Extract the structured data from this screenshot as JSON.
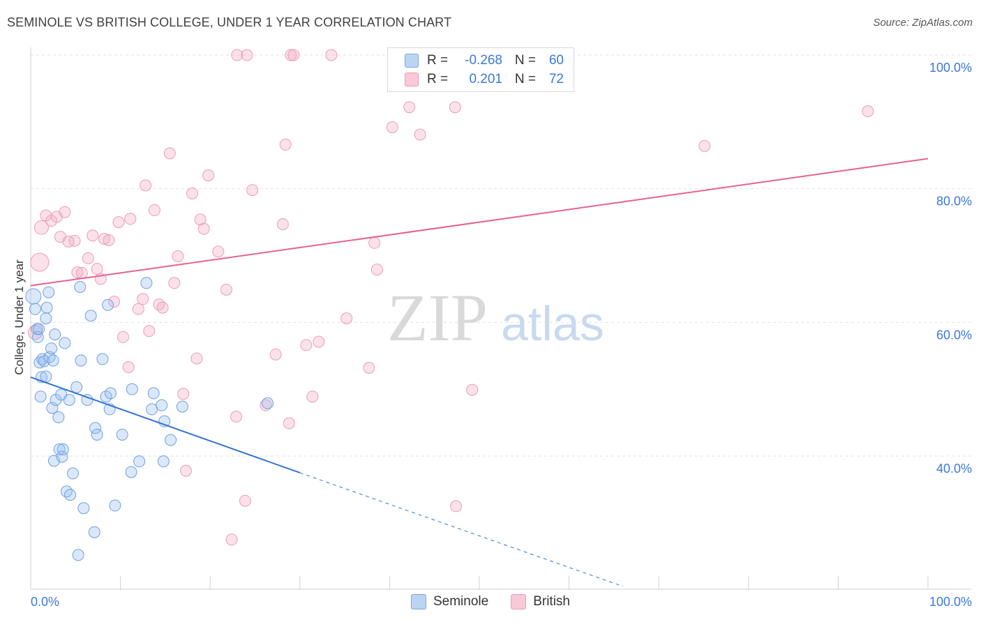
{
  "header": {
    "title": "SEMINOLE VS BRITISH COLLEGE, UNDER 1 YEAR CORRELATION CHART",
    "source": "Source: ZipAtlas.com"
  },
  "watermark": {
    "zip": "ZIP",
    "atlas": "atlas"
  },
  "legend": {
    "rows": [
      {
        "r_label": "R =",
        "r_value": "-0.268",
        "n_label": "N =",
        "n_value": "60"
      },
      {
        "r_label": "R =",
        "r_value": "0.201",
        "n_label": "N =",
        "n_value": "72"
      }
    ]
  },
  "chart_data": {
    "type": "scatter",
    "title": "SEMINOLE VS BRITISH COLLEGE, UNDER 1 YEAR CORRELATION CHART",
    "xlabel": "",
    "ylabel": "College, Under 1 year",
    "xlim": [
      0,
      100
    ],
    "ylim": [
      20,
      102
    ],
    "x_tick_labels": [
      "0.0%",
      "100.0%"
    ],
    "y_ticks": [
      40,
      60,
      80,
      100
    ],
    "y_tick_labels": [
      "40.0%",
      "60.0%",
      "80.0%",
      "100.0%"
    ],
    "grid": true,
    "legend_position": "bottom-center",
    "colors": {
      "seminole": "#6fa0e0",
      "british": "#f0a0bb",
      "seminole_line": "#3372d0",
      "british_line": "#e4628f"
    },
    "series": [
      {
        "name": "Seminole",
        "r": -0.268,
        "n": 60,
        "trend": {
          "x0": 0,
          "y0": 51.8,
          "x1": 30,
          "y1": 37.5,
          "dashed_to_x": 66,
          "dashed_to_y": 20.5
        },
        "points": [
          [
            0.3,
            63.9
          ],
          [
            0.5,
            62.0
          ],
          [
            0.7,
            59.0
          ],
          [
            0.8,
            57.8
          ],
          [
            1.0,
            54.0
          ],
          [
            1.1,
            48.9
          ],
          [
            1.2,
            51.8
          ],
          [
            1.3,
            54.5
          ],
          [
            1.5,
            54.2
          ],
          [
            1.7,
            51.9
          ],
          [
            1.8,
            62.2
          ],
          [
            1.7,
            60.6
          ],
          [
            2.0,
            64.5
          ],
          [
            2.1,
            54.8
          ],
          [
            2.3,
            56.1
          ],
          [
            2.4,
            47.2
          ],
          [
            2.5,
            54.3
          ],
          [
            2.6,
            39.3
          ],
          [
            2.7,
            58.2
          ],
          [
            2.8,
            48.4
          ],
          [
            3.1,
            45.8
          ],
          [
            3.2,
            41.0
          ],
          [
            3.4,
            49.2
          ],
          [
            3.5,
            39.9
          ],
          [
            3.6,
            41.0
          ],
          [
            3.8,
            56.9
          ],
          [
            4.0,
            34.7
          ],
          [
            4.3,
            48.4
          ],
          [
            4.4,
            34.2
          ],
          [
            4.7,
            37.4
          ],
          [
            5.1,
            50.3
          ],
          [
            5.3,
            25.2
          ],
          [
            5.5,
            65.3
          ],
          [
            5.6,
            54.3
          ],
          [
            5.9,
            32.2
          ],
          [
            6.3,
            48.4
          ],
          [
            6.7,
            61.0
          ],
          [
            7.1,
            28.6
          ],
          [
            7.2,
            44.2
          ],
          [
            7.4,
            43.2
          ],
          [
            8.0,
            54.5
          ],
          [
            8.4,
            48.9
          ],
          [
            8.6,
            62.6
          ],
          [
            8.8,
            47.0
          ],
          [
            8.9,
            49.4
          ],
          [
            9.4,
            32.6
          ],
          [
            10.2,
            43.2
          ],
          [
            11.2,
            37.6
          ],
          [
            11.3,
            50.0
          ],
          [
            12.1,
            39.2
          ],
          [
            12.9,
            65.9
          ],
          [
            13.5,
            47.0
          ],
          [
            13.7,
            49.4
          ],
          [
            14.6,
            47.6
          ],
          [
            14.8,
            39.2
          ],
          [
            14.9,
            45.2
          ],
          [
            15.6,
            42.4
          ],
          [
            16.9,
            47.4
          ],
          [
            26.4,
            47.9
          ],
          [
            0.9,
            59.0
          ]
        ]
      },
      {
        "name": "British",
        "r": 0.201,
        "n": 72,
        "trend": {
          "x0": 0,
          "y0": 65.5,
          "x1": 100,
          "y1": 84.5
        },
        "points": [
          [
            0.5,
            58.5
          ],
          [
            1.0,
            69.0
          ],
          [
            1.2,
            74.2
          ],
          [
            1.7,
            76.0
          ],
          [
            2.3,
            75.2
          ],
          [
            2.9,
            75.8
          ],
          [
            3.3,
            72.8
          ],
          [
            3.8,
            76.5
          ],
          [
            4.2,
            72.1
          ],
          [
            4.9,
            72.2
          ],
          [
            5.2,
            67.5
          ],
          [
            5.7,
            67.4
          ],
          [
            6.4,
            69.6
          ],
          [
            6.9,
            73.0
          ],
          [
            7.4,
            68.0
          ],
          [
            7.8,
            66.5
          ],
          [
            8.2,
            72.5
          ],
          [
            8.7,
            72.3
          ],
          [
            9.3,
            63.1
          ],
          [
            9.8,
            75.0
          ],
          [
            10.3,
            57.8
          ],
          [
            10.9,
            53.3
          ],
          [
            11.1,
            75.5
          ],
          [
            12.0,
            62.0
          ],
          [
            12.5,
            63.5
          ],
          [
            12.8,
            80.5
          ],
          [
            13.2,
            58.7
          ],
          [
            13.8,
            76.8
          ],
          [
            14.3,
            62.7
          ],
          [
            14.7,
            62.2
          ],
          [
            15.5,
            85.3
          ],
          [
            16.0,
            65.9
          ],
          [
            16.4,
            69.9
          ],
          [
            17.0,
            49.3
          ],
          [
            17.3,
            37.8
          ],
          [
            18.0,
            79.3
          ],
          [
            18.5,
            54.6
          ],
          [
            18.9,
            75.4
          ],
          [
            19.3,
            74.0
          ],
          [
            19.8,
            82.0
          ],
          [
            20.9,
            70.6
          ],
          [
            21.8,
            64.9
          ],
          [
            22.4,
            27.5
          ],
          [
            22.9,
            45.9
          ],
          [
            23.0,
            100.0
          ],
          [
            23.9,
            33.3
          ],
          [
            24.1,
            100.0
          ],
          [
            24.7,
            79.8
          ],
          [
            26.2,
            47.6
          ],
          [
            27.3,
            55.2
          ],
          [
            28.1,
            74.7
          ],
          [
            28.4,
            86.6
          ],
          [
            28.8,
            44.9
          ],
          [
            29.0,
            100.0
          ],
          [
            29.3,
            100.0
          ],
          [
            30.7,
            56.6
          ],
          [
            31.4,
            48.9
          ],
          [
            32.1,
            57.1
          ],
          [
            33.5,
            100.0
          ],
          [
            35.2,
            60.6
          ],
          [
            37.7,
            53.2
          ],
          [
            38.3,
            71.9
          ],
          [
            38.6,
            67.9
          ],
          [
            40.3,
            89.2
          ],
          [
            42.2,
            92.2
          ],
          [
            43.4,
            88.1
          ],
          [
            47.3,
            92.2
          ],
          [
            47.4,
            32.5
          ],
          [
            49.2,
            49.9
          ],
          [
            50.4,
            100.0
          ],
          [
            75.1,
            86.4
          ],
          [
            93.3,
            91.6
          ]
        ]
      }
    ]
  }
}
